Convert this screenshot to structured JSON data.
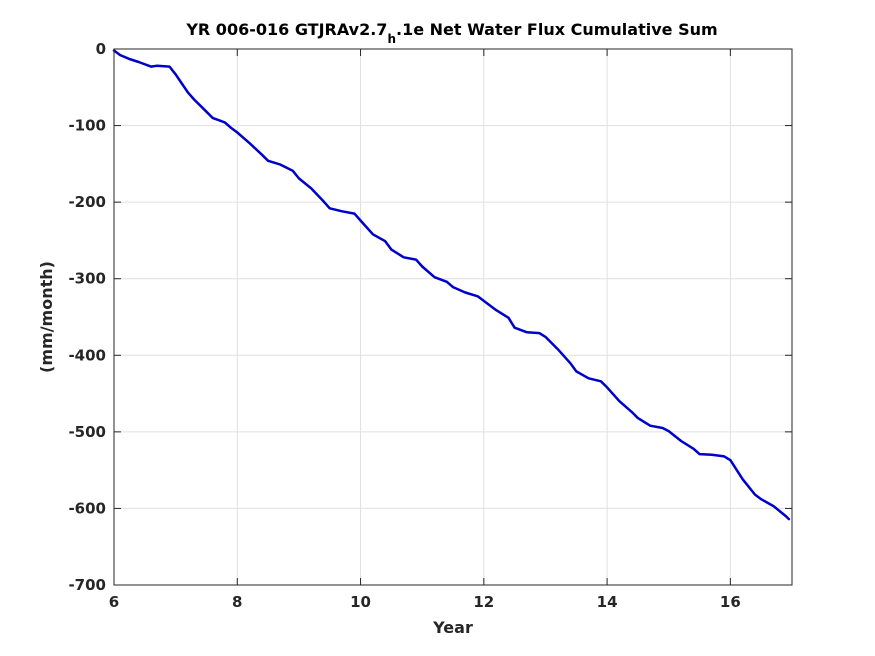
{
  "chart_data": {
    "type": "line",
    "title_parts": [
      "YR 006-016 GTJRAv2.7",
      "h",
      ".1e Net Water Flux Cumulative Sum"
    ],
    "xlabel": "Year",
    "ylabel": "(mm/month)",
    "xlim": [
      6,
      17
    ],
    "ylim": [
      -700,
      0
    ],
    "xticks": [
      6,
      8,
      10,
      12,
      14,
      16
    ],
    "yticks": [
      0,
      -100,
      -200,
      -300,
      -400,
      -500,
      -600,
      -700
    ],
    "grid": true,
    "series_color": "#0000cc",
    "series": [
      {
        "x": [
          6.0,
          6.1,
          6.25,
          6.4,
          6.6,
          6.7,
          6.9,
          7.0,
          7.1,
          7.2,
          7.3,
          7.45,
          7.6,
          7.7,
          7.8,
          7.9,
          8.0,
          8.2,
          8.4,
          8.5,
          8.7,
          8.9,
          9.0,
          9.2,
          9.4,
          9.5,
          9.7,
          9.9,
          10.0,
          10.2,
          10.4,
          10.5,
          10.7,
          10.9,
          11.0,
          11.2,
          11.4,
          11.5,
          11.7,
          11.9,
          12.0,
          12.2,
          12.4,
          12.5,
          12.7,
          12.9,
          13.0,
          13.2,
          13.4,
          13.5,
          13.7,
          13.9,
          14.0,
          14.2,
          14.4,
          14.5,
          14.7,
          14.9,
          15.0,
          15.2,
          15.4,
          15.5,
          15.7,
          15.9,
          16.0,
          16.2,
          16.4,
          16.5,
          16.7,
          16.9,
          16.95
        ],
        "y": [
          -2,
          -8,
          -13,
          -17,
          -23,
          -22,
          -23,
          -33,
          -45,
          -57,
          -66,
          -78,
          -90,
          -93,
          -96,
          -103,
          -109,
          -123,
          -138,
          -146,
          -151,
          -159,
          -169,
          -182,
          -199,
          -208,
          -212,
          -215,
          -224,
          -242,
          -251,
          -262,
          -272,
          -275,
          -284,
          -298,
          -304,
          -311,
          -318,
          -323,
          -329,
          -341,
          -351,
          -364,
          -370,
          -371,
          -376,
          -392,
          -410,
          -421,
          -430,
          -434,
          -442,
          -460,
          -474,
          -482,
          -492,
          -495,
          -499,
          -512,
          -522,
          -529,
          -530,
          -532,
          -537,
          -562,
          -582,
          -588,
          -597,
          -610,
          -614
        ]
      }
    ]
  }
}
